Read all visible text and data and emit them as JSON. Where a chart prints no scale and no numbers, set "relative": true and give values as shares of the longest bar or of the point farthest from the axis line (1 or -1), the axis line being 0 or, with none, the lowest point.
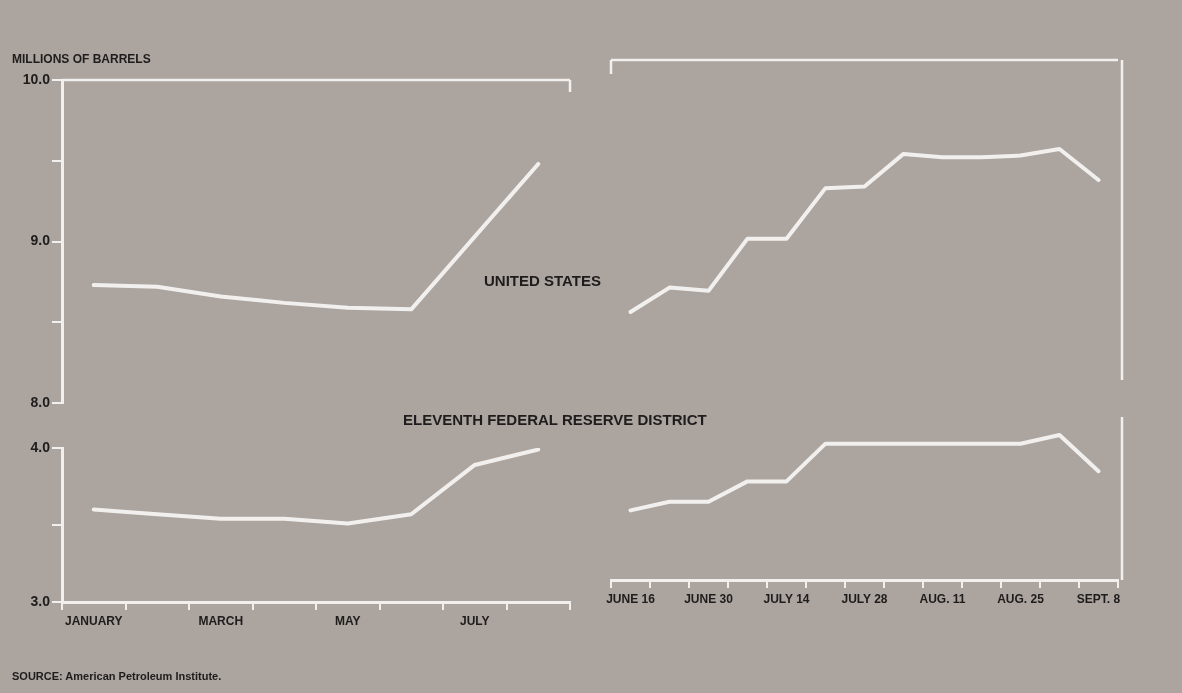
{
  "chart_data": [
    {
      "type": "line",
      "ylabel": "MILLIONS OF BARRELS",
      "categories": [
        null,
        null,
        null,
        null,
        null,
        null,
        null,
        null
      ],
      "series": [
        {
          "name": "UNITED STATES",
          "color": "#f2f0ee",
          "values": [
            8.73,
            8.72,
            8.66,
            8.62,
            8.59,
            8.58,
            9.03,
            9.48
          ]
        }
      ],
      "ylim": [
        8,
        10
      ],
      "yticks": [
        {
          "value": 8,
          "label": "8.0"
        },
        {
          "value": 8.5,
          "label": null
        },
        {
          "value": 9,
          "label": "9.0"
        },
        {
          "value": 9.5,
          "label": null
        },
        {
          "value": 10,
          "label": "10.0"
        }
      ],
      "tick_labels": "y",
      "grid": false,
      "legend": false
    },
    {
      "type": "line",
      "categories": [
        "JANUARY",
        null,
        "MARCH",
        null,
        "MAY",
        null,
        "JULY",
        null
      ],
      "series": [
        {
          "name": "ELEVENTH FEDERAL RESERVE DISTRICT",
          "color": "#f2f0ee",
          "values": [
            3.6,
            3.57,
            3.54,
            3.54,
            3.51,
            3.57,
            3.89,
            3.99
          ]
        }
      ],
      "ylim": [
        3,
        4
      ],
      "yticks": [
        {
          "value": 3,
          "label": "3.0"
        },
        {
          "value": 3.5,
          "label": null
        },
        {
          "value": 4,
          "label": "4.0"
        }
      ],
      "grid": false,
      "legend": false,
      "annotations": [
        "SOURCE: American Petroleum Institute."
      ]
    },
    {
      "type": "line",
      "relative": true,
      "categories": [
        null,
        null,
        null,
        null,
        null,
        null,
        null,
        null,
        null,
        null,
        null,
        null,
        null
      ],
      "series": [
        {
          "color": "#f2f0ee",
          "values": [
            0,
            0.15,
            0.13,
            0.45,
            0.45,
            0.76,
            0.77,
            0.97,
            0.95,
            0.95,
            0.96,
            1,
            0.81
          ]
        }
      ],
      "tick_labels": false,
      "grid": false,
      "legend": false
    },
    {
      "type": "line",
      "relative": true,
      "categories": [
        "JUNE 16",
        null,
        "JUNE 30",
        null,
        "JULY 14",
        null,
        "JULY 28",
        null,
        "AUG. 11",
        null,
        "AUG. 25",
        null,
        "SEPT. 8"
      ],
      "series": [
        {
          "color": "#f2f0ee",
          "values": [
            0.48,
            0.54,
            0.54,
            0.68,
            0.68,
            0.94,
            0.94,
            0.94,
            0.94,
            0.94,
            0.94,
            1,
            0.75
          ]
        }
      ],
      "tick_labels": "x",
      "grid": false,
      "legend": false
    }
  ]
}
